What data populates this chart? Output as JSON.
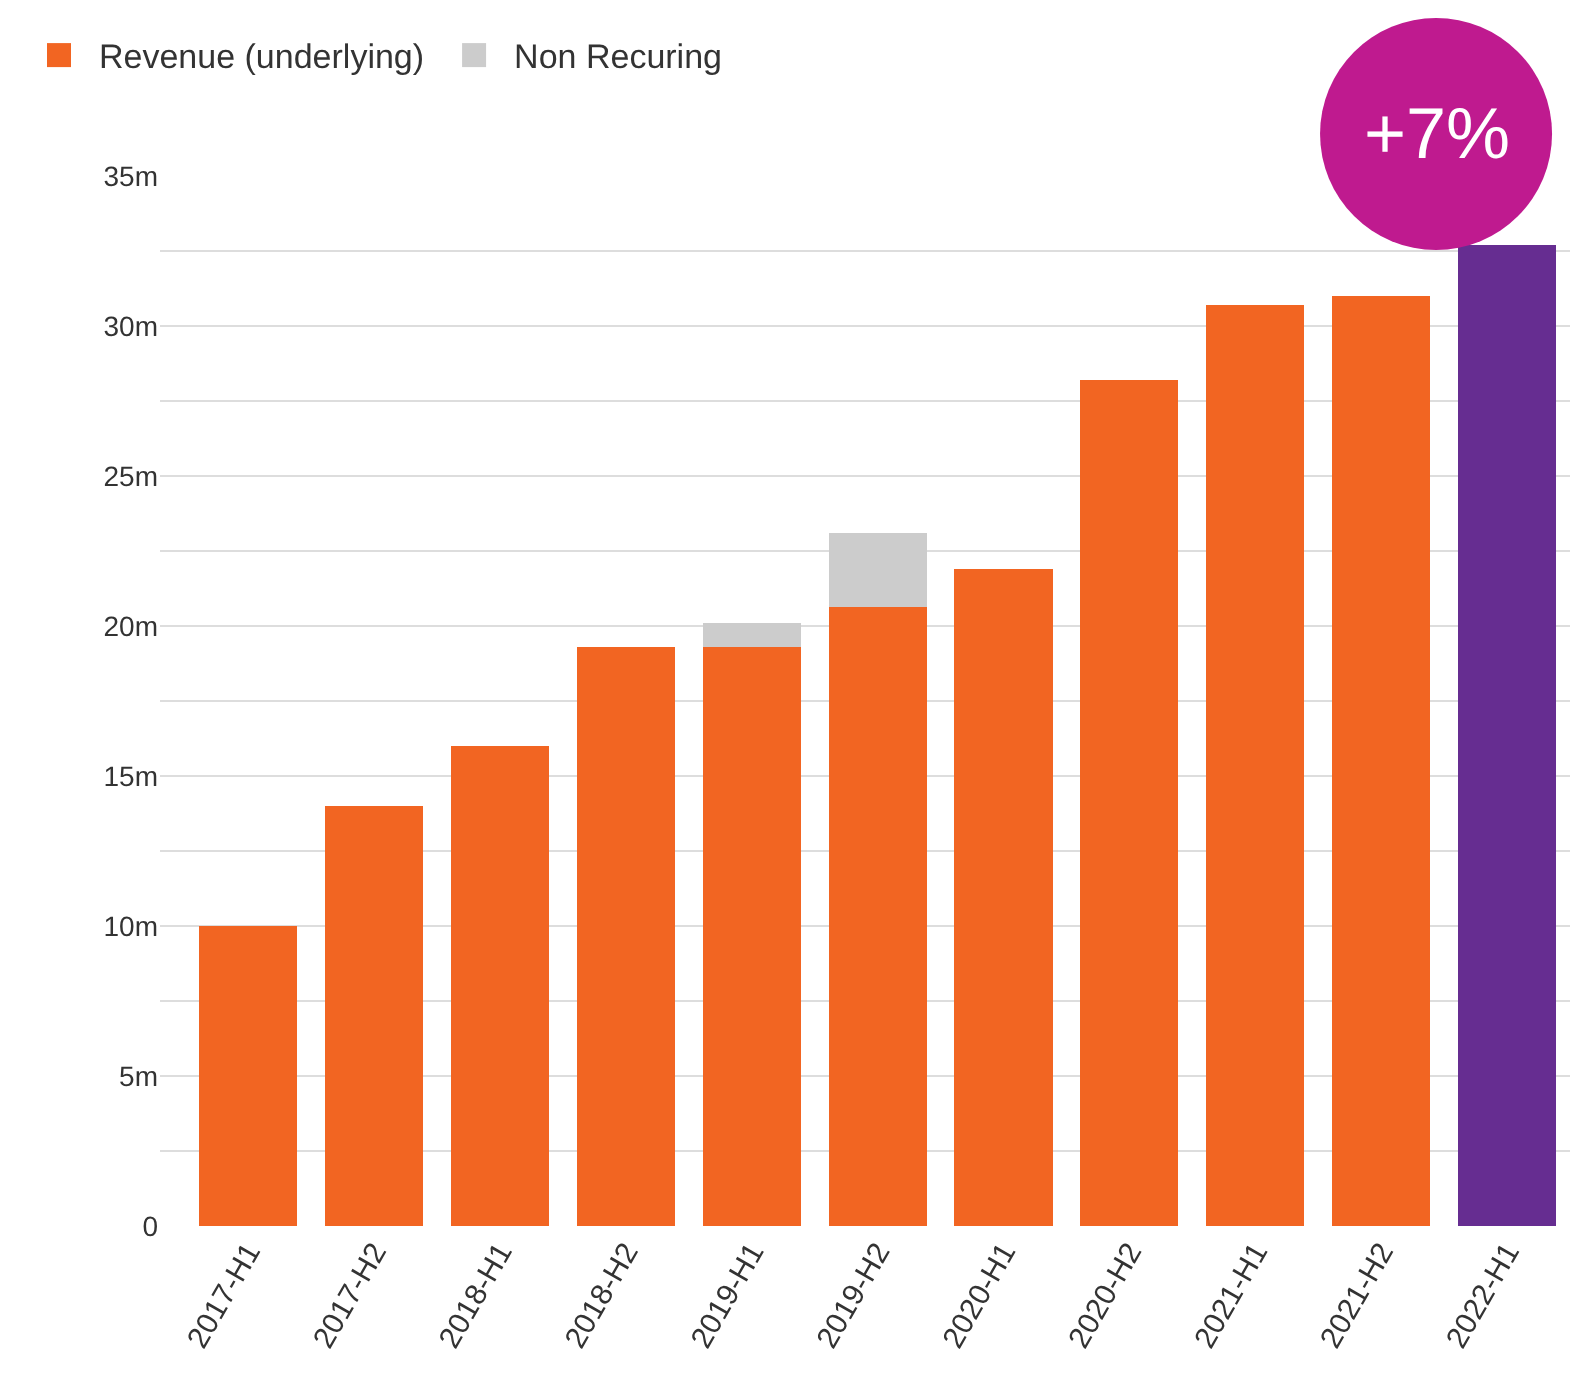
{
  "chart_data": {
    "type": "bar",
    "stacked": true,
    "categories": [
      "2017-H1",
      "2017-H2",
      "2018-H1",
      "2018-H2",
      "2019-H1",
      "2019-H2",
      "2020-H1",
      "2020-H2",
      "2021-H1",
      "2021-H2",
      "2022-H1"
    ],
    "series": [
      {
        "name": "Revenue (underlying)",
        "colors": [
          "#f26522",
          "#f26522",
          "#f26522",
          "#f26522",
          "#f26522",
          "#f26522",
          "#f26522",
          "#f26522",
          "#f26522",
          "#f26522",
          "#662d91"
        ],
        "values": [
          10.0,
          14.0,
          16.0,
          19.3,
          19.3,
          20.65,
          21.9,
          28.2,
          30.7,
          31.0,
          32.7
        ]
      },
      {
        "name": "Non Recuring",
        "color": "#cccccc",
        "values": [
          null,
          null,
          null,
          null,
          0.8,
          2.45,
          null,
          null,
          null,
          null,
          null
        ]
      }
    ],
    "ylim": [
      0,
      35
    ],
    "yticks": [
      {
        "value": 0,
        "label": "0"
      },
      {
        "value": 2.5,
        "label": null
      },
      {
        "value": 5,
        "label": "5m"
      },
      {
        "value": 7.5,
        "label": null
      },
      {
        "value": 10,
        "label": "10m"
      },
      {
        "value": 12.5,
        "label": null
      },
      {
        "value": 15,
        "label": "15m"
      },
      {
        "value": 17.5,
        "label": null
      },
      {
        "value": 20,
        "label": "20m"
      },
      {
        "value": 22.5,
        "label": null
      },
      {
        "value": 25,
        "label": "25m"
      },
      {
        "value": 27.5,
        "label": null
      },
      {
        "value": 30,
        "label": "30m"
      },
      {
        "value": 32.5,
        "label": null
      },
      {
        "value": 35,
        "label": "35m"
      }
    ],
    "grid": "y",
    "legend": "top left",
    "annotations": [
      "+7%"
    ]
  }
}
